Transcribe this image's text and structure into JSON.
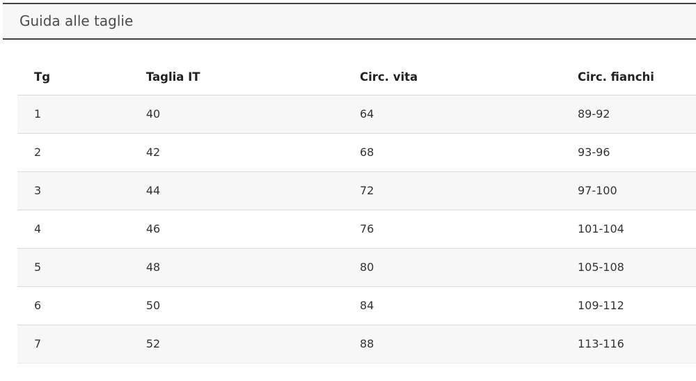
{
  "panel": {
    "title": "Guida alle taglie"
  },
  "size_table": {
    "columns": [
      {
        "key": "tg",
        "label": "Tg"
      },
      {
        "key": "taglia-it",
        "label": "Taglia IT"
      },
      {
        "key": "circ-vita",
        "label": "Circ. vita"
      },
      {
        "key": "circ-fianchi",
        "label": "Circ. fianchi"
      }
    ],
    "column_widths_pct": [
      16.5,
      31.5,
      32.1,
      19.9
    ],
    "rows": [
      [
        "1",
        "40",
        "64",
        "89-92"
      ],
      [
        "2",
        "42",
        "68",
        "93-96"
      ],
      [
        "3",
        "44",
        "72",
        "97-100"
      ],
      [
        "4",
        "46",
        "76",
        "101-104"
      ],
      [
        "5",
        "48",
        "80",
        "105-108"
      ],
      [
        "6",
        "50",
        "84",
        "109-112"
      ],
      [
        "7",
        "52",
        "88",
        "113-116"
      ]
    ]
  },
  "colors": {
    "panel_border": "#424242",
    "panel_bg": "#f7f7f7",
    "row_stripe_bg": "#f7f7f7",
    "row_border": "#d9d9d9",
    "header_text": "#222222",
    "cell_text": "#333333",
    "title_text": "#4c4c4c"
  }
}
